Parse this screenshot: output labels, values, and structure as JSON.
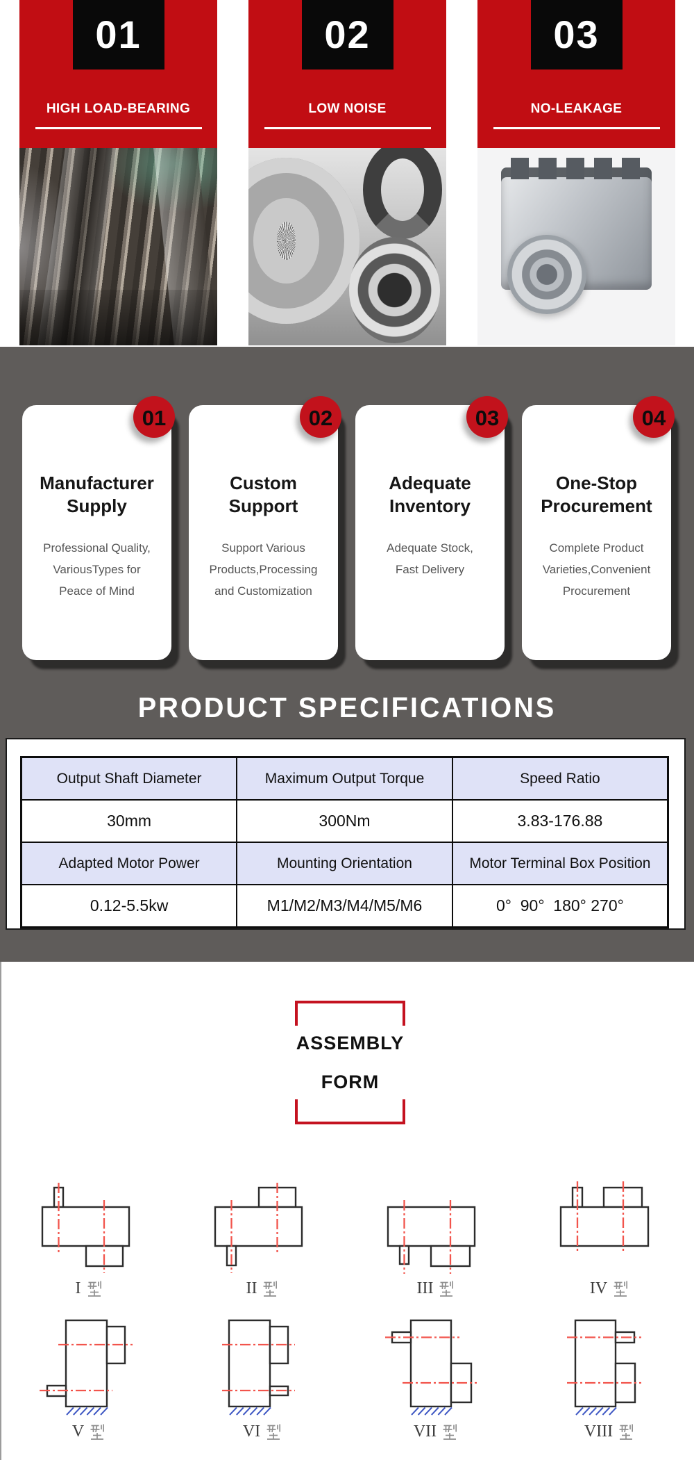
{
  "colors": {
    "banner_red": "#c10d13",
    "badge_red": "#c2121c",
    "gray_background": "#5f5c5a",
    "table_header_bg": "#dfe2f7",
    "assembly_box_border": "#c41220",
    "centerline_red": "#f2544c",
    "hatch_blue": "#3f58c4"
  },
  "features": [
    {
      "number": "01",
      "label": "HIGH LOAD-BEARING",
      "photo": "helical-gears-closeup"
    },
    {
      "number": "02",
      "label": "LOW NOISE",
      "photo": "gear-and-bearings"
    },
    {
      "number": "03",
      "label": "NO-LEAKAGE",
      "photo": "gearbox-unit"
    }
  ],
  "advantage_cards": [
    {
      "number": "01",
      "title": "Manufacturer Supply",
      "title_lines": [
        "Manufacturer",
        "Supply"
      ],
      "body_lines": [
        "Professional Quality,",
        "VariousTypes for",
        "Peace of Mind"
      ]
    },
    {
      "number": "02",
      "title": "Custom Support",
      "title_lines": [
        "Custom",
        "Support"
      ],
      "body_lines": [
        "Support Various",
        "Products,Processing",
        "and Customization"
      ]
    },
    {
      "number": "03",
      "title": "Adequate Inventory",
      "title_lines": [
        "Adequate",
        "Inventory"
      ],
      "body_lines": [
        "Adequate Stock,",
        "Fast Delivery"
      ]
    },
    {
      "number": "04",
      "title": "One-Stop Procurement",
      "title_lines": [
        "One-Stop",
        "Procurement"
      ],
      "body_lines": [
        "Complete Product",
        "Varieties,Convenient",
        "Procurement"
      ]
    }
  ],
  "specifications": {
    "title": "PRODUCT SPECIFICATIONS",
    "rows": [
      {
        "kind": "header",
        "cells": [
          "Output Shaft Diameter",
          "Maximum Output Torque",
          "Speed Ratio"
        ]
      },
      {
        "kind": "value",
        "cells": [
          "30mm",
          "300Nm",
          "3.83-176.88"
        ]
      },
      {
        "kind": "header",
        "cells": [
          "Adapted Motor Power",
          "Mounting Orientation",
          "Motor Terminal Box Position"
        ]
      },
      {
        "kind": "value",
        "cells": [
          "0.12-5.5kw",
          "M1/M2/M3/M4/M5/M6",
          "0°  90°  180° 270°"
        ]
      }
    ]
  },
  "assembly": {
    "title_lines": [
      "ASSEMBLY",
      "FORM"
    ],
    "diagrams": [
      {
        "roman": "I",
        "caption": "I 型"
      },
      {
        "roman": "II",
        "caption": "II 型"
      },
      {
        "roman": "III",
        "caption": "III 型"
      },
      {
        "roman": "IV",
        "caption": "IV 型"
      },
      {
        "roman": "V",
        "caption": "V 型"
      },
      {
        "roman": "VI",
        "caption": "VI 型"
      },
      {
        "roman": "VII",
        "caption": "VII 型"
      },
      {
        "roman": "VIII",
        "caption": "VIII 型"
      }
    ]
  }
}
